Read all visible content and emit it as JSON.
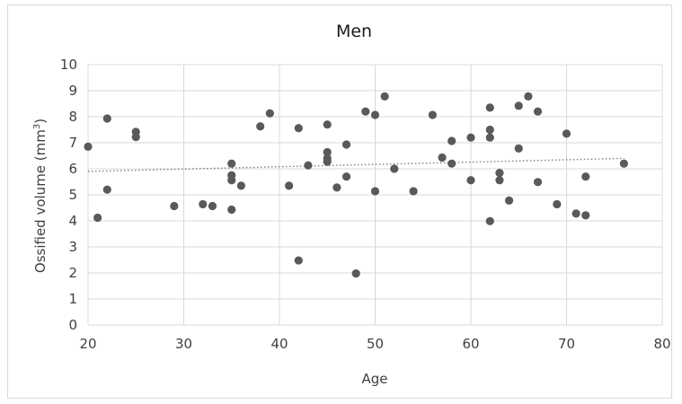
{
  "chart_data": {
    "type": "scatter",
    "title": "Men",
    "xlabel": "Age",
    "ylabel_main": "Ossified volume (mm",
    "ylabel_sup": "3",
    "ylabel_close": ")",
    "xlim": [
      20,
      80
    ],
    "ylim": [
      0,
      10
    ],
    "xticks": [
      20,
      30,
      40,
      50,
      60,
      70,
      80
    ],
    "yticks": [
      0,
      1,
      2,
      3,
      4,
      5,
      6,
      7,
      8,
      9,
      10
    ],
    "grid": true,
    "legend": "none",
    "colors": {
      "point": "#595959",
      "grid": "#d9d9d9",
      "trend": "#7f7f7f"
    },
    "trendline": {
      "type": "linear",
      "x": [
        20,
        76
      ],
      "y": [
        5.9,
        6.4
      ],
      "style": "dotted"
    },
    "points": [
      {
        "x": 20,
        "y": 6.85
      },
      {
        "x": 21,
        "y": 4.12
      },
      {
        "x": 22,
        "y": 7.93
      },
      {
        "x": 22,
        "y": 5.2
      },
      {
        "x": 25,
        "y": 7.42
      },
      {
        "x": 25,
        "y": 7.22
      },
      {
        "x": 29,
        "y": 4.57
      },
      {
        "x": 32,
        "y": 4.64
      },
      {
        "x": 33,
        "y": 4.57
      },
      {
        "x": 35,
        "y": 6.2
      },
      {
        "x": 35,
        "y": 5.75
      },
      {
        "x": 35,
        "y": 5.56
      },
      {
        "x": 35,
        "y": 4.43
      },
      {
        "x": 36,
        "y": 5.35
      },
      {
        "x": 38,
        "y": 7.63
      },
      {
        "x": 39,
        "y": 8.13
      },
      {
        "x": 41,
        "y": 5.35
      },
      {
        "x": 42,
        "y": 7.56
      },
      {
        "x": 42,
        "y": 2.48
      },
      {
        "x": 43,
        "y": 6.13
      },
      {
        "x": 45,
        "y": 7.7
      },
      {
        "x": 45,
        "y": 6.64
      },
      {
        "x": 45,
        "y": 6.4
      },
      {
        "x": 45,
        "y": 6.27
      },
      {
        "x": 46,
        "y": 5.28
      },
      {
        "x": 47,
        "y": 6.93
      },
      {
        "x": 47,
        "y": 5.7
      },
      {
        "x": 48,
        "y": 1.98
      },
      {
        "x": 49,
        "y": 8.2
      },
      {
        "x": 50,
        "y": 8.07
      },
      {
        "x": 50,
        "y": 5.14
      },
      {
        "x": 51,
        "y": 8.78
      },
      {
        "x": 52,
        "y": 6.0
      },
      {
        "x": 54,
        "y": 5.14
      },
      {
        "x": 56,
        "y": 8.07
      },
      {
        "x": 57,
        "y": 6.43
      },
      {
        "x": 58,
        "y": 7.07
      },
      {
        "x": 58,
        "y": 6.2
      },
      {
        "x": 60,
        "y": 7.2
      },
      {
        "x": 60,
        "y": 5.56
      },
      {
        "x": 62,
        "y": 8.35
      },
      {
        "x": 62,
        "y": 7.5
      },
      {
        "x": 62,
        "y": 7.2
      },
      {
        "x": 62,
        "y": 3.99
      },
      {
        "x": 63,
        "y": 5.84
      },
      {
        "x": 63,
        "y": 5.56
      },
      {
        "x": 64,
        "y": 4.78
      },
      {
        "x": 65,
        "y": 8.42
      },
      {
        "x": 65,
        "y": 6.78
      },
      {
        "x": 66,
        "y": 8.78
      },
      {
        "x": 67,
        "y": 8.2
      },
      {
        "x": 67,
        "y": 5.49
      },
      {
        "x": 69,
        "y": 4.64
      },
      {
        "x": 70,
        "y": 7.35
      },
      {
        "x": 71,
        "y": 4.28
      },
      {
        "x": 72,
        "y": 5.7
      },
      {
        "x": 72,
        "y": 4.21
      },
      {
        "x": 76,
        "y": 6.2
      }
    ]
  }
}
